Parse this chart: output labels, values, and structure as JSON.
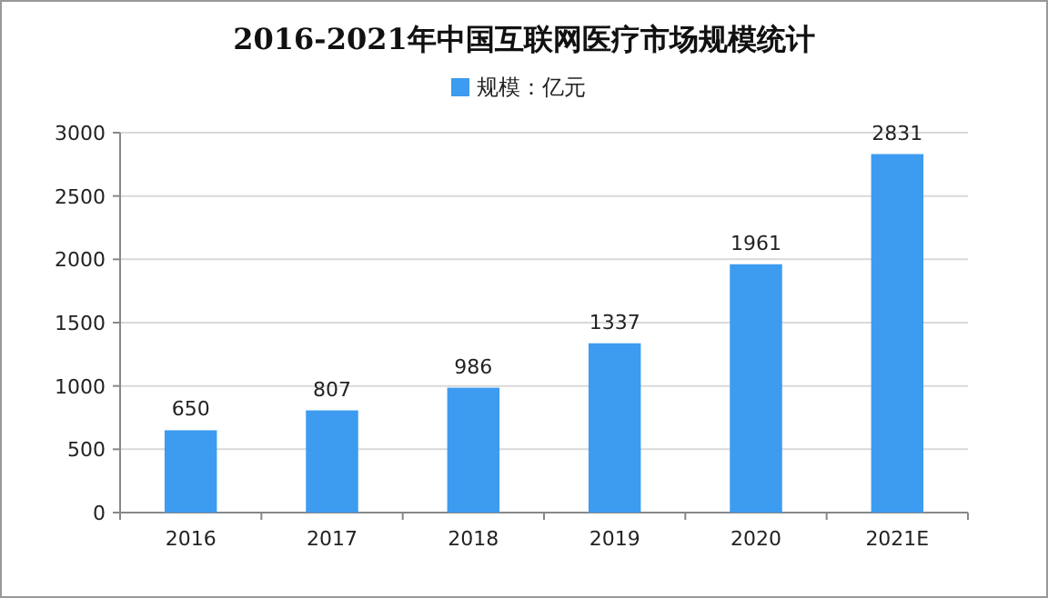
{
  "chart_data": {
    "type": "bar",
    "title": "2016-2021年中国互联网医疗市场规模统计",
    "categories": [
      "2016",
      "2017",
      "2018",
      "2019",
      "2020",
      "2021E"
    ],
    "series": [
      {
        "name": "规模：亿元",
        "color": "#3d9bf0",
        "values": [
          650,
          807,
          986,
          1337,
          1961,
          2831
        ]
      }
    ],
    "ylim": [
      0,
      3000
    ],
    "yticks": [
      0,
      500,
      1000,
      1500,
      2000,
      2500,
      3000
    ],
    "grid": "y",
    "legend": "top",
    "data_labels": true
  }
}
